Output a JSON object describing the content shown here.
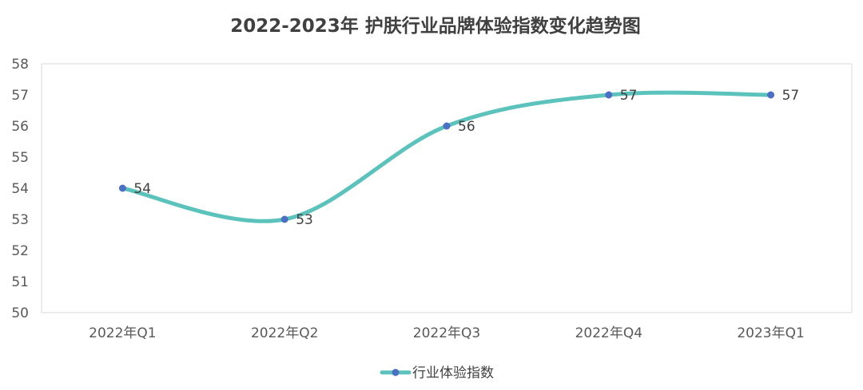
{
  "chart_data": {
    "type": "line",
    "title": "2022-2023年 护肤行业品牌体验指数变化趋势图",
    "categories": [
      "2022年Q1",
      "2022年Q2",
      "2022年Q3",
      "2022年Q4",
      "2023年Q1"
    ],
    "series": [
      {
        "name": "行业体验指数",
        "values": [
          54,
          53,
          56,
          57,
          57
        ],
        "line_color": "#5bc2bc",
        "marker_color": "#4a6fc4"
      }
    ],
    "ylim": [
      50,
      58
    ],
    "yticks": [
      50,
      51,
      52,
      53,
      54,
      55,
      56,
      57,
      58
    ],
    "grid": false,
    "smooth": true,
    "data_labels": true,
    "legend_position": "bottom",
    "plot_border_color": "#d9d9d9"
  }
}
